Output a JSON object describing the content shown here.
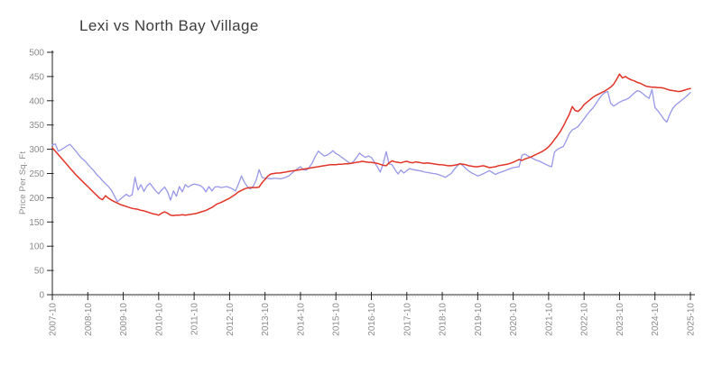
{
  "chart_data": {
    "type": "line",
    "title": "Lexi vs North Bay Village",
    "xlabel": "",
    "ylabel": "Price Per Sq. Ft",
    "ylim": [
      0,
      500
    ],
    "yticks": [
      0,
      50,
      100,
      150,
      200,
      250,
      300,
      350,
      400,
      450,
      500
    ],
    "grid": false,
    "legend_position": "none",
    "x_start": "2007-10",
    "x_end": "2025-10",
    "x_frequency": "monthly",
    "x_months_per_tick": 12,
    "x_tick_labels": [
      "2007-10",
      "2008-10",
      "2009-10",
      "2010-10",
      "2011-10",
      "2012-10",
      "2013-10",
      "2014-10",
      "2015-10",
      "2016-10",
      "2017-10",
      "2018-10",
      "2019-10",
      "2020-10",
      "2021-10",
      "2022-10",
      "2023-10",
      "2024-10",
      "2025-10"
    ],
    "series": [
      {
        "name": "Lexi",
        "color": "#9797e8",
        "width": 1.3,
        "values": [
          309,
          311,
          296,
          299,
          303,
          307,
          310,
          303,
          296,
          288,
          281,
          276,
          269,
          262,
          256,
          248,
          242,
          235,
          229,
          223,
          215,
          204,
          192,
          197,
          202,
          207,
          203,
          206,
          242,
          216,
          227,
          213,
          224,
          230,
          222,
          214,
          208,
          216,
          222,
          212,
          195,
          214,
          203,
          223,
          212,
          227,
          222,
          226,
          228,
          227,
          225,
          221,
          212,
          223,
          214,
          222,
          223,
          221,
          222,
          223,
          221,
          218,
          214,
          228,
          245,
          232,
          223,
          218,
          224,
          236,
          258,
          242,
          240,
          240,
          239,
          240,
          240,
          239,
          240,
          242,
          245,
          250,
          255,
          260,
          264,
          258,
          257,
          263,
          272,
          285,
          296,
          291,
          286,
          288,
          292,
          297,
          291,
          288,
          283,
          279,
          274,
          270,
          275,
          283,
          292,
          287,
          283,
          286,
          283,
          274,
          264,
          253,
          270,
          295,
          270,
          268,
          258,
          249,
          257,
          251,
          256,
          260,
          258,
          257,
          256,
          255,
          253,
          252,
          251,
          250,
          249,
          247,
          245,
          242,
          246,
          250,
          258,
          265,
          271,
          266,
          260,
          255,
          251,
          248,
          245,
          247,
          250,
          253,
          256,
          252,
          248,
          251,
          253,
          255,
          258,
          260,
          262,
          263,
          264,
          288,
          290,
          286,
          283,
          280,
          277,
          275,
          272,
          269,
          266,
          264,
          294,
          300,
          303,
          306,
          318,
          332,
          340,
          343,
          347,
          355,
          363,
          371,
          379,
          385,
          394,
          403,
          411,
          417,
          419,
          395,
          389,
          393,
          397,
          400,
          402,
          405,
          410,
          416,
          421,
          419,
          414,
          409,
          405,
          423,
          386,
          379,
          371,
          362,
          356,
          372,
          384,
          391,
          396,
          401,
          406,
          411,
          417
        ]
      },
      {
        "name": "North Bay Village",
        "color": "#e23428",
        "width": 1.5,
        "values": [
          303,
          296,
          289,
          282,
          275,
          268,
          261,
          254,
          247,
          241,
          235,
          229,
          223,
          217,
          211,
          205,
          199,
          196,
          204,
          199,
          195,
          192,
          189,
          186,
          184,
          182,
          180,
          178,
          177,
          176,
          174,
          173,
          171,
          169,
          167,
          166,
          164,
          168,
          171,
          168,
          164,
          163,
          164,
          164,
          165,
          164,
          165,
          166,
          167,
          168,
          170,
          172,
          174,
          177,
          180,
          184,
          188,
          190,
          193,
          196,
          199,
          203,
          207,
          212,
          215,
          218,
          220,
          221,
          221,
          221,
          222,
          231,
          238,
          245,
          249,
          250,
          251,
          251,
          252,
          253,
          254,
          255,
          256,
          257,
          258,
          259,
          260,
          261,
          262,
          263,
          264,
          265,
          266,
          267,
          268,
          268,
          268,
          269,
          269,
          270,
          270,
          271,
          272,
          273,
          274,
          275,
          274,
          273,
          273,
          272,
          271,
          269,
          267,
          266,
          272,
          276,
          274,
          273,
          272,
          274,
          275,
          273,
          272,
          274,
          273,
          272,
          271,
          272,
          271,
          270,
          269,
          268,
          268,
          267,
          266,
          266,
          267,
          268,
          270,
          269,
          268,
          266,
          265,
          264,
          264,
          265,
          266,
          264,
          262,
          263,
          264,
          266,
          267,
          268,
          269,
          271,
          273,
          276,
          279,
          277,
          280,
          282,
          284,
          287,
          290,
          293,
          296,
          300,
          305,
          312,
          320,
          328,
          337,
          348,
          360,
          372,
          388,
          380,
          378,
          384,
          392,
          397,
          402,
          407,
          411,
          414,
          417,
          420,
          424,
          428,
          434,
          444,
          455,
          447,
          450,
          446,
          443,
          441,
          438,
          436,
          433,
          430,
          429,
          428,
          428,
          427,
          427,
          426,
          424,
          422,
          421,
          420,
          419,
          420,
          422,
          424,
          425
        ]
      }
    ],
    "axis_color": "#222222",
    "tick_label_color": "#8a8a8a"
  }
}
